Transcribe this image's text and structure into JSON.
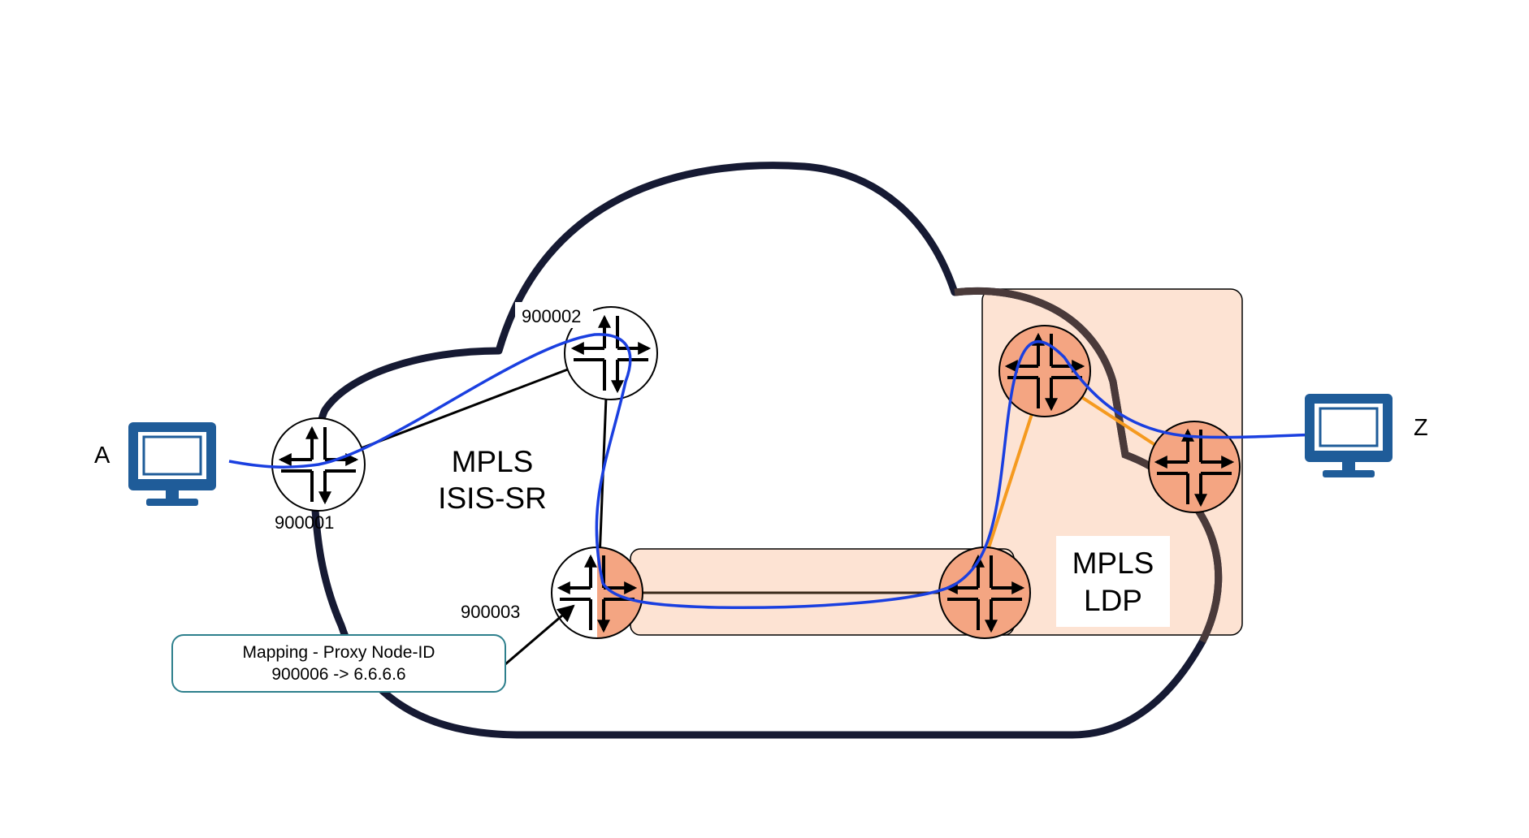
{
  "endpoints": {
    "a": "A",
    "z": "Z"
  },
  "routers": {
    "r1": "900001",
    "r2": "900002",
    "r3": "900003"
  },
  "domains": {
    "sr": [
      "MPLS",
      "ISIS-SR"
    ],
    "ldp": [
      "MPLS",
      "LDP"
    ]
  },
  "callout": {
    "line1": "Mapping - Proxy Node-ID",
    "line2": "900006 -> 6.6.6.6"
  },
  "colors": {
    "cloud": "#161a33",
    "ldp_fill": "#fde3d3",
    "router_orange": "#f4a582",
    "path_blue": "#1a3fe0",
    "link_orange": "#f59a1f",
    "callout_border": "#2d7f8c",
    "computer_blue": "#1f5c99"
  },
  "icons": {
    "computer": "computer-icon",
    "router": "router-icon"
  }
}
